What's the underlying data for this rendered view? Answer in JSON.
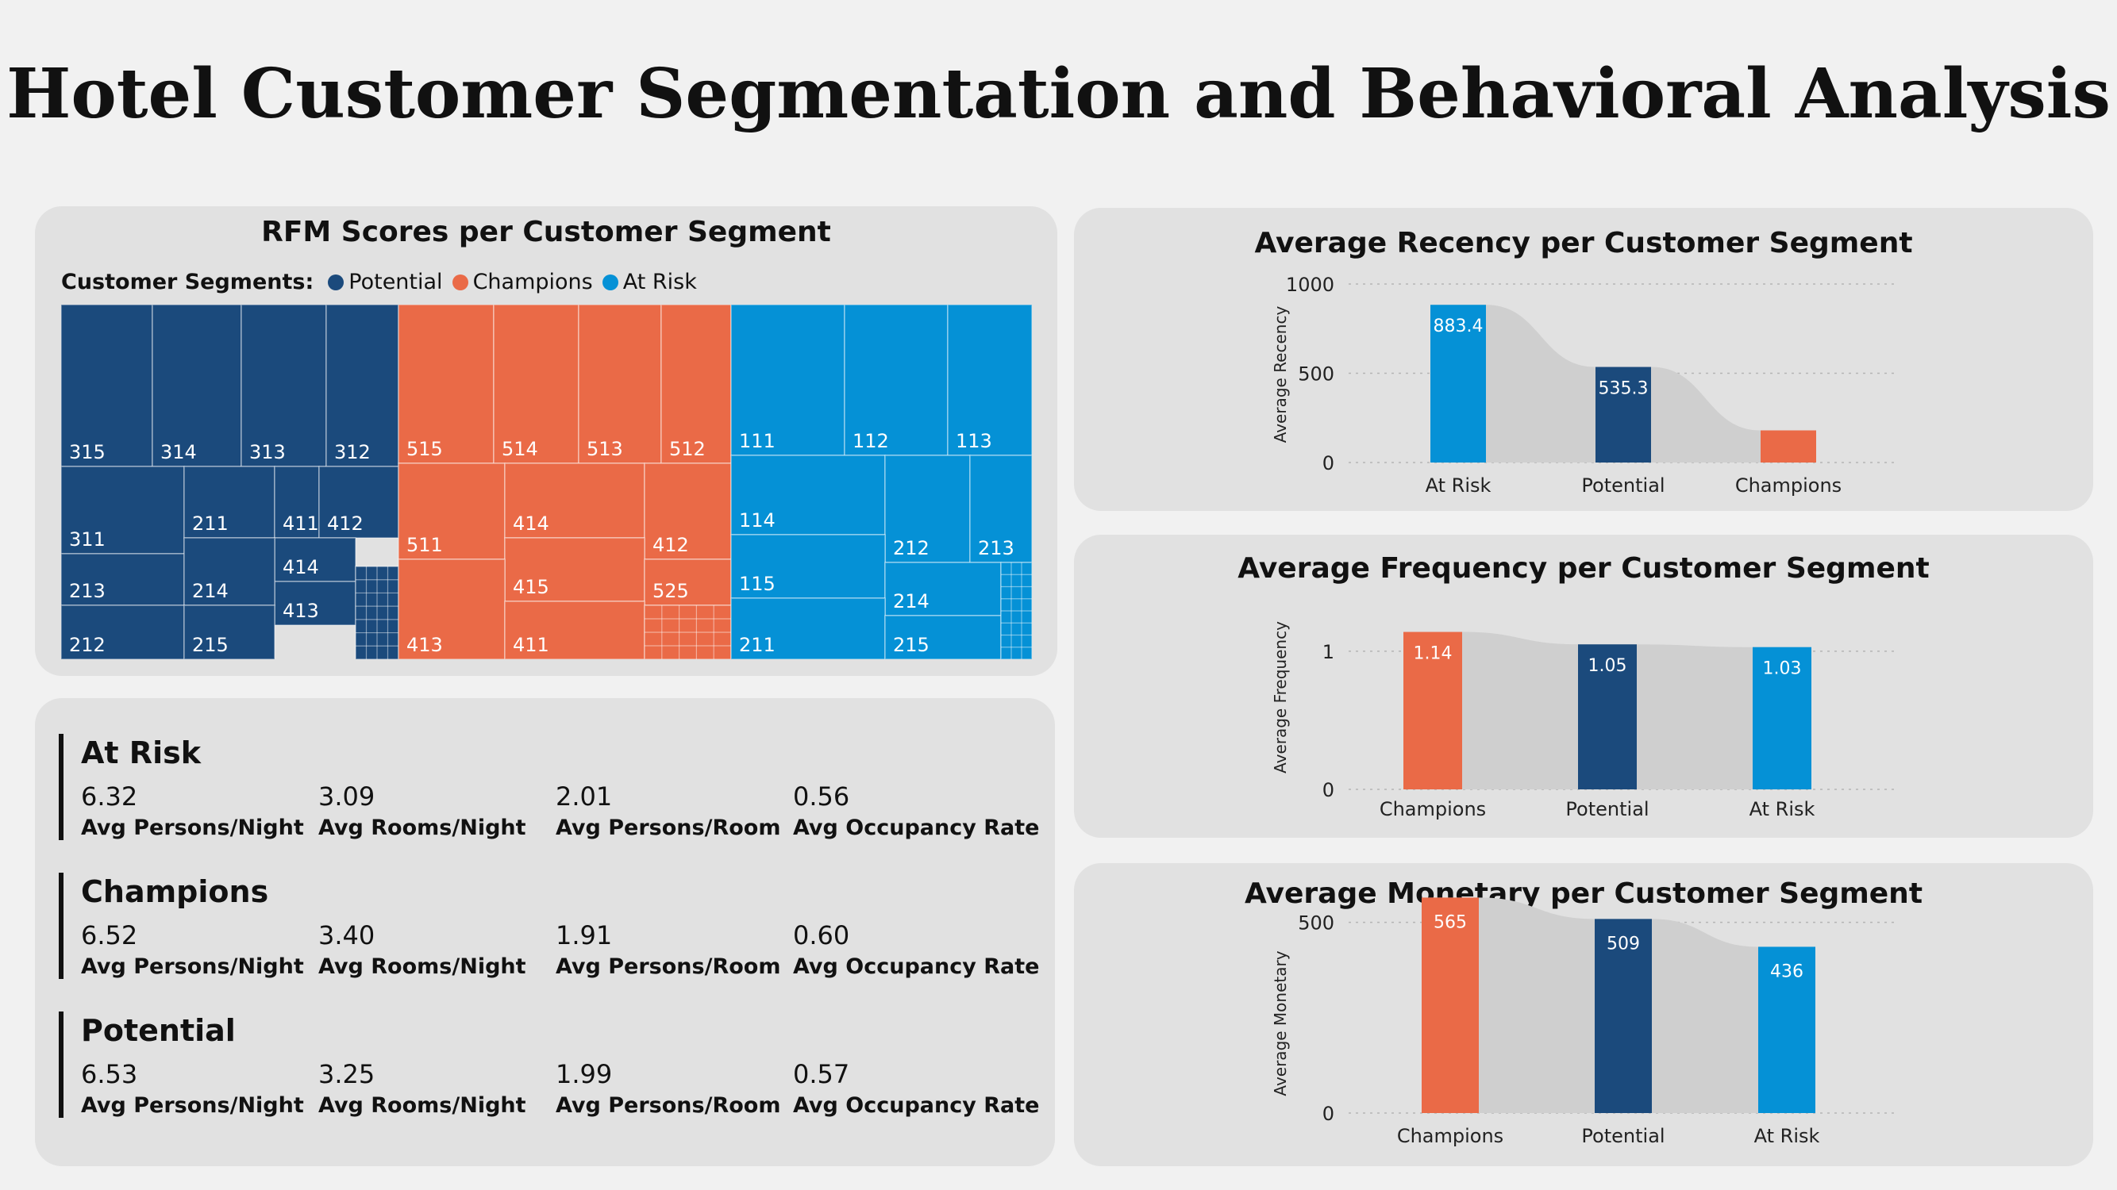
{
  "title": "Hotel Customer Segmentation and Behavioral Analysis",
  "colors": {
    "potential": "#1b4a7c",
    "champions": "#ea6a47",
    "at_risk": "#0591d6",
    "panel": "#e1e1e1",
    "background": "#f1f1f1"
  },
  "treemap": {
    "title": "RFM Scores per Customer Segment",
    "legend_title": "Customer Segments:",
    "legend": [
      "Potential",
      "Champions",
      "At Risk"
    ],
    "groups": [
      {
        "segment": "Potential",
        "labels": [
          "315",
          "314",
          "313",
          "312",
          "311",
          "211",
          "411",
          "412",
          "414",
          "413",
          "213",
          "214",
          "212",
          "215"
        ]
      },
      {
        "segment": "Champions",
        "labels": [
          "515",
          "514",
          "513",
          "512",
          "511",
          "414",
          "412",
          "415",
          "525",
          "413",
          "411"
        ]
      },
      {
        "segment": "At Risk",
        "labels": [
          "111",
          "112",
          "113",
          "114",
          "212",
          "213",
          "115",
          "214",
          "211",
          "215"
        ]
      }
    ]
  },
  "metrics": {
    "labels": [
      "Avg Persons/Night",
      "Avg Rooms/Night",
      "Avg Persons/Room",
      "Avg Occupancy Rate"
    ],
    "segments": [
      {
        "name": "At Risk",
        "values": [
          "6.32",
          "3.09",
          "2.01",
          "0.56"
        ]
      },
      {
        "name": "Champions",
        "values": [
          "6.52",
          "3.40",
          "1.91",
          "0.60"
        ]
      },
      {
        "name": "Potential",
        "values": [
          "6.53",
          "3.25",
          "1.99",
          "0.57"
        ]
      }
    ]
  },
  "chart_data": [
    {
      "type": "bar",
      "title": "Average Recency per Customer Segment",
      "ylabel": "Average Recency",
      "xlabel": "",
      "categories": [
        "At Risk",
        "Potential",
        "Champions"
      ],
      "values": [
        883.4,
        535.3,
        180
      ],
      "data_labels": [
        "883.4",
        "535.3",
        ""
      ],
      "colors": [
        "#0591d6",
        "#1b4a7c",
        "#ea6a47"
      ],
      "ylim": [
        0,
        1000
      ],
      "yticks": [
        "0",
        "500",
        "1000"
      ],
      "grid": true
    },
    {
      "type": "bar",
      "title": "Average Frequency per Customer Segment",
      "ylabel": "Average Frequency",
      "xlabel": "",
      "categories": [
        "Champions",
        "Potential",
        "At Risk"
      ],
      "values": [
        1.14,
        1.05,
        1.03
      ],
      "data_labels": [
        "1.14",
        "1.05",
        "1.03"
      ],
      "colors": [
        "#ea6a47",
        "#1b4a7c",
        "#0591d6"
      ],
      "ylim": [
        0,
        1.35
      ],
      "yticks": [
        "0",
        "1"
      ],
      "grid": true
    },
    {
      "type": "bar",
      "title": "Average Monetary per Customer Segment",
      "ylabel": "Average Monetary",
      "xlabel": "",
      "categories": [
        "Champions",
        "Potential",
        "At Risk"
      ],
      "values": [
        565,
        509,
        436
      ],
      "data_labels": [
        "565",
        "509",
        "436"
      ],
      "colors": [
        "#ea6a47",
        "#1b4a7c",
        "#0591d6"
      ],
      "ylim": [
        0,
        620
      ],
      "yticks": [
        "0",
        "500"
      ],
      "grid": true
    }
  ]
}
